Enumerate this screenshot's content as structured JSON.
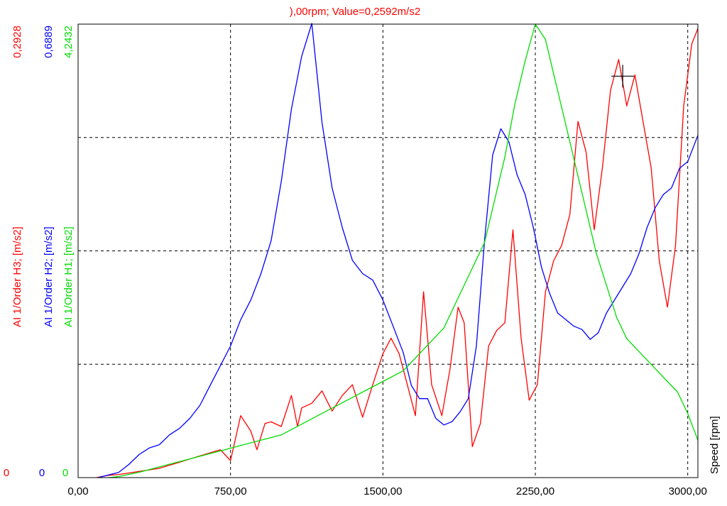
{
  "chart_data": {
    "type": "line",
    "title": "),00rpm; Value=0,2592m/s2",
    "xlabel": "Speed [rpm]",
    "xlim": [
      0,
      3050
    ],
    "x_ticks": [
      "0,00",
      "750,00",
      "1500,00",
      "2250,00",
      "3000,00"
    ],
    "x_tick_values": [
      0,
      750,
      1500,
      2250,
      3000
    ],
    "grid": true,
    "cursor": {
      "x": 2680,
      "y": 0.2592,
      "series": "AI 1/Order H3"
    },
    "axes": [
      {
        "key": "h3",
        "label": "AI 1/Order H3; [m/s2]",
        "max_label": "0,2928",
        "min_label": "0",
        "ylim": [
          0,
          0.2928
        ],
        "color": "#ff0000"
      },
      {
        "key": "h2",
        "label": "AI 1/Order H2; [m/s2]",
        "max_label": "0,6889",
        "min_label": "0",
        "ylim": [
          0,
          0.6889
        ],
        "color": "#0000ff"
      },
      {
        "key": "h1",
        "label": "AI 1/Order H1; [m/s2]",
        "max_label": "4,2432",
        "min_label": "0",
        "ylim": [
          0,
          4.2432
        ],
        "color": "#00dd00"
      }
    ],
    "series": [
      {
        "name": "AI 1/Order H3; [m/s2]",
        "axis": "h3",
        "color": "#ff0000",
        "points": [
          [
            90,
            0
          ],
          [
            150,
            0.0015
          ],
          [
            200,
            0.002
          ],
          [
            250,
            0.003
          ],
          [
            300,
            0.004
          ],
          [
            350,
            0.005
          ],
          [
            400,
            0.006
          ],
          [
            450,
            0.008
          ],
          [
            500,
            0.01
          ],
          [
            550,
            0.012
          ],
          [
            600,
            0.014
          ],
          [
            650,
            0.016
          ],
          [
            700,
            0.018
          ],
          [
            750,
            0.011
          ],
          [
            800,
            0.04
          ],
          [
            850,
            0.03
          ],
          [
            880,
            0.018
          ],
          [
            920,
            0.035
          ],
          [
            950,
            0.036
          ],
          [
            1000,
            0.033
          ],
          [
            1050,
            0.053
          ],
          [
            1080,
            0.033
          ],
          [
            1100,
            0.045
          ],
          [
            1150,
            0.048
          ],
          [
            1200,
            0.056
          ],
          [
            1250,
            0.043
          ],
          [
            1300,
            0.053
          ],
          [
            1350,
            0.06
          ],
          [
            1400,
            0.039
          ],
          [
            1450,
            0.06
          ],
          [
            1500,
            0.08
          ],
          [
            1540,
            0.09
          ],
          [
            1580,
            0.08
          ],
          [
            1620,
            0.06
          ],
          [
            1660,
            0.04
          ],
          [
            1700,
            0.12
          ],
          [
            1740,
            0.06
          ],
          [
            1790,
            0.04
          ],
          [
            1830,
            0.07
          ],
          [
            1870,
            0.11
          ],
          [
            1900,
            0.1
          ],
          [
            1940,
            0.02
          ],
          [
            1980,
            0.035
          ],
          [
            2020,
            0.085
          ],
          [
            2060,
            0.095
          ],
          [
            2100,
            0.1
          ],
          [
            2140,
            0.16
          ],
          [
            2180,
            0.09
          ],
          [
            2220,
            0.05
          ],
          [
            2260,
            0.06
          ],
          [
            2300,
            0.12
          ],
          [
            2340,
            0.14
          ],
          [
            2380,
            0.15
          ],
          [
            2420,
            0.17
          ],
          [
            2460,
            0.23
          ],
          [
            2500,
            0.21
          ],
          [
            2540,
            0.16
          ],
          [
            2580,
            0.2
          ],
          [
            2620,
            0.25
          ],
          [
            2660,
            0.27
          ],
          [
            2700,
            0.24
          ],
          [
            2740,
            0.26
          ],
          [
            2780,
            0.23
          ],
          [
            2820,
            0.2
          ],
          [
            2860,
            0.14
          ],
          [
            2900,
            0.11
          ],
          [
            2940,
            0.15
          ],
          [
            2980,
            0.24
          ],
          [
            3020,
            0.28
          ],
          [
            3050,
            0.29
          ]
        ]
      },
      {
        "name": "AI 1/Order H2; [m/s2]",
        "axis": "h2",
        "color": "#0000ff",
        "points": [
          [
            100,
            0
          ],
          [
            150,
            0.004
          ],
          [
            200,
            0.008
          ],
          [
            250,
            0.02
          ],
          [
            300,
            0.035
          ],
          [
            350,
            0.045
          ],
          [
            400,
            0.05
          ],
          [
            450,
            0.065
          ],
          [
            500,
            0.075
          ],
          [
            550,
            0.09
          ],
          [
            600,
            0.11
          ],
          [
            650,
            0.14
          ],
          [
            700,
            0.17
          ],
          [
            750,
            0.2
          ],
          [
            800,
            0.24
          ],
          [
            850,
            0.27
          ],
          [
            900,
            0.31
          ],
          [
            950,
            0.36
          ],
          [
            1000,
            0.45
          ],
          [
            1050,
            0.56
          ],
          [
            1100,
            0.64
          ],
          [
            1150,
            0.69
          ],
          [
            1200,
            0.54
          ],
          [
            1250,
            0.44
          ],
          [
            1300,
            0.38
          ],
          [
            1350,
            0.33
          ],
          [
            1400,
            0.31
          ],
          [
            1450,
            0.3
          ],
          [
            1500,
            0.27
          ],
          [
            1550,
            0.23
          ],
          [
            1600,
            0.19
          ],
          [
            1640,
            0.14
          ],
          [
            1680,
            0.12
          ],
          [
            1720,
            0.12
          ],
          [
            1760,
            0.09
          ],
          [
            1800,
            0.08
          ],
          [
            1840,
            0.085
          ],
          [
            1880,
            0.1
          ],
          [
            1920,
            0.12
          ],
          [
            1960,
            0.2
          ],
          [
            2000,
            0.36
          ],
          [
            2040,
            0.49
          ],
          [
            2080,
            0.53
          ],
          [
            2120,
            0.51
          ],
          [
            2160,
            0.46
          ],
          [
            2200,
            0.43
          ],
          [
            2240,
            0.38
          ],
          [
            2280,
            0.32
          ],
          [
            2320,
            0.28
          ],
          [
            2360,
            0.25
          ],
          [
            2400,
            0.24
          ],
          [
            2440,
            0.23
          ],
          [
            2480,
            0.225
          ],
          [
            2520,
            0.21
          ],
          [
            2560,
            0.22
          ],
          [
            2600,
            0.25
          ],
          [
            2640,
            0.27
          ],
          [
            2680,
            0.29
          ],
          [
            2720,
            0.31
          ],
          [
            2760,
            0.34
          ],
          [
            2800,
            0.38
          ],
          [
            2840,
            0.41
          ],
          [
            2880,
            0.43
          ],
          [
            2920,
            0.44
          ],
          [
            2960,
            0.47
          ],
          [
            3000,
            0.48
          ],
          [
            3050,
            0.52
          ]
        ]
      },
      {
        "name": "AI 1/Order H1; [m/s2]",
        "axis": "h1",
        "color": "#00dd00",
        "points": [
          [
            150,
            0
          ],
          [
            200,
            0.01
          ],
          [
            300,
            0.05
          ],
          [
            400,
            0.1
          ],
          [
            500,
            0.15
          ],
          [
            600,
            0.2
          ],
          [
            700,
            0.25
          ],
          [
            800,
            0.3
          ],
          [
            900,
            0.35
          ],
          [
            1000,
            0.4
          ],
          [
            1100,
            0.5
          ],
          [
            1200,
            0.6
          ],
          [
            1300,
            0.7
          ],
          [
            1400,
            0.8
          ],
          [
            1500,
            0.9
          ],
          [
            1600,
            1.0
          ],
          [
            1700,
            1.2
          ],
          [
            1800,
            1.4
          ],
          [
            1850,
            1.6
          ],
          [
            1900,
            1.8
          ],
          [
            1950,
            2.0
          ],
          [
            2000,
            2.2
          ],
          [
            2050,
            2.6
          ],
          [
            2100,
            3.0
          ],
          [
            2150,
            3.5
          ],
          [
            2200,
            3.9
          ],
          [
            2250,
            4.243
          ],
          [
            2300,
            4.1
          ],
          [
            2350,
            3.7
          ],
          [
            2400,
            3.3
          ],
          [
            2450,
            2.9
          ],
          [
            2500,
            2.5
          ],
          [
            2550,
            2.1
          ],
          [
            2600,
            1.8
          ],
          [
            2650,
            1.5
          ],
          [
            2700,
            1.3
          ],
          [
            2750,
            1.2
          ],
          [
            2800,
            1.1
          ],
          [
            2850,
            1.0
          ],
          [
            2900,
            0.9
          ],
          [
            2950,
            0.8
          ],
          [
            3000,
            0.6
          ],
          [
            3050,
            0.35
          ]
        ]
      }
    ]
  }
}
